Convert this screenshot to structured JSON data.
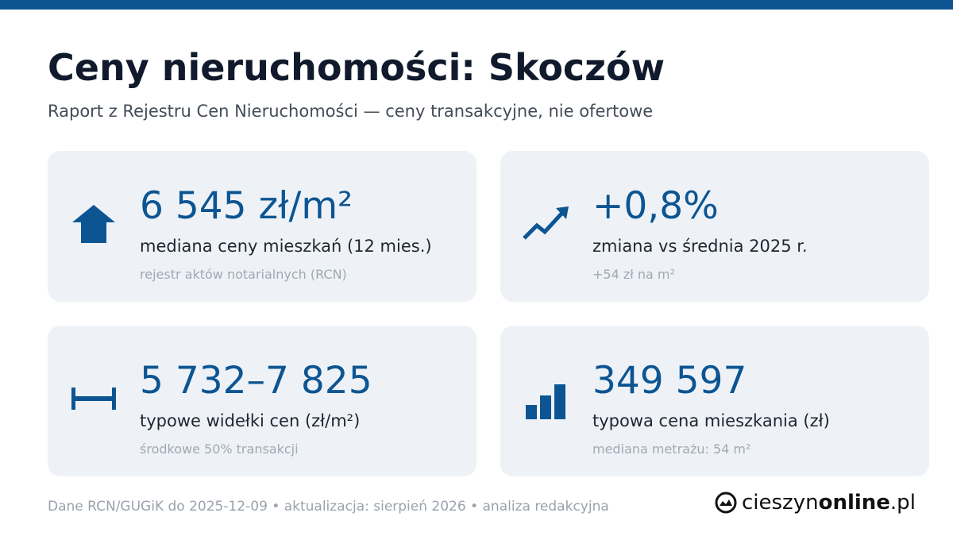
{
  "header": {
    "title": "Ceny nieruchomości: Skoczów",
    "subtitle": "Raport z Rejestru Cen Nieruchomości — ceny transakcyjne, nie ofertowe"
  },
  "cards": [
    {
      "value": "6 545 zł/m²",
      "label": "mediana ceny mieszkań (12 mies.)",
      "note": "rejestr aktów notarialnych (RCN)"
    },
    {
      "value": "+0,8%",
      "label": "zmiana vs średnia 2025 r.",
      "note": "+54 zł na m²"
    },
    {
      "value": "5 732–7 825",
      "label": "typowe widełki cen (zł/m²)",
      "note": "środkowe 50% transakcji"
    },
    {
      "value": "349 597",
      "label": "typowa cena mieszkania (zł)",
      "note": "mediana metrażu: 54 m²"
    }
  ],
  "footer": {
    "text": "Dane RCN/GUGiK do 2025-12-09 • aktualizacja: sierpień 2026 • analiza redakcyjna",
    "logo": {
      "part1": "cieszyn",
      "part2": "online",
      "part3": ".pl"
    }
  }
}
